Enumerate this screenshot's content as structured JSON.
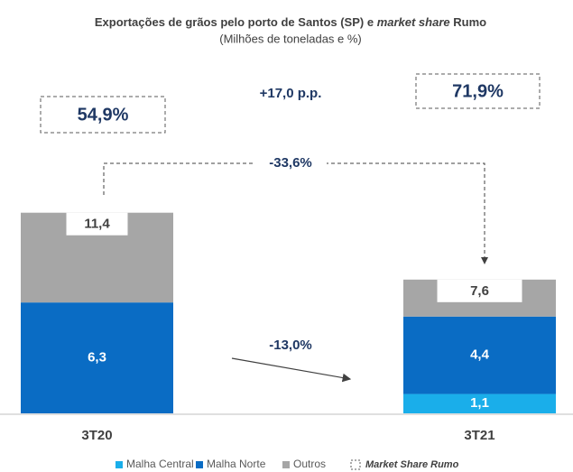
{
  "chart_data": {
    "type": "bar",
    "stacked": true,
    "title_parts": [
      "Exportações de grãos pelo porto de Santos (SP) e ",
      "market share",
      " Rumo"
    ],
    "subtitle": "(Milhões de toneladas e %)",
    "categories": [
      "3T20",
      "3T21"
    ],
    "series": [
      {
        "name": "Malha Central",
        "color": "#1aaeea",
        "values": [
          null,
          1.1
        ],
        "value_labels": [
          null,
          "1,1"
        ]
      },
      {
        "name": "Malha Norte",
        "color": "#0a6cc4",
        "values": [
          6.3,
          4.4
        ],
        "value_labels": [
          "6,3",
          "4,4"
        ]
      },
      {
        "name": "Outros",
        "color": "#a6a6a6",
        "values": [
          5.1,
          2.1
        ]
      }
    ],
    "totals": {
      "values": [
        11.4,
        7.6
      ],
      "value_labels": [
        "11,4",
        "7,6"
      ]
    },
    "market_share": {
      "name": "Market Share Rumo",
      "values": [
        54.9,
        71.9
      ],
      "value_labels": [
        "54,9%",
        "71,9%"
      ]
    },
    "annotations": [
      "+17,0 p.p.",
      "-33,6%",
      "-13,0%"
    ]
  }
}
